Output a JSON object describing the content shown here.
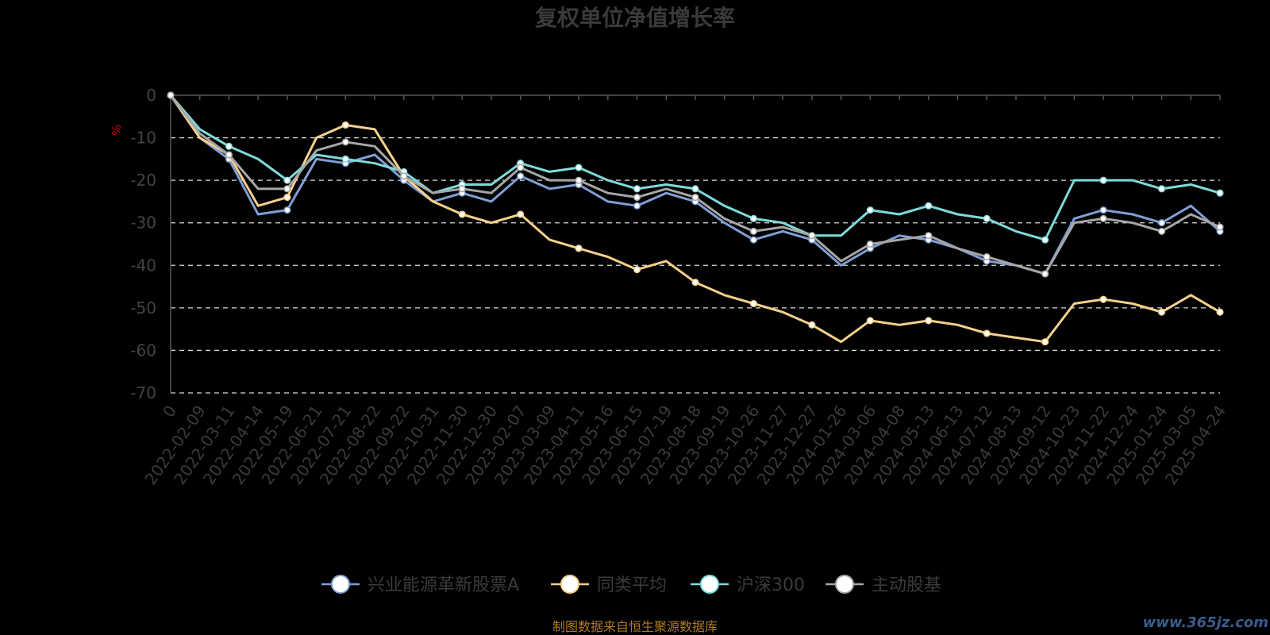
{
  "chart_data": {
    "type": "line",
    "title": "复权单位净值增长率",
    "ylabel": "%",
    "ylim": [
      -70,
      0
    ],
    "yticks": [
      0,
      -10,
      -20,
      -30,
      -40,
      -50,
      -60,
      -70
    ],
    "x_labels": [
      "0",
      "2022-02-09",
      "2022-03-11",
      "2022-04-14",
      "2022-05-19",
      "2022-06-21",
      "2022-07-21",
      "2022-08-22",
      "2022-09-22",
      "2022-10-31",
      "2022-11-30",
      "2022-12-30",
      "2023-02-07",
      "2023-03-09",
      "2023-04-11",
      "2023-05-16",
      "2023-06-15",
      "2023-07-19",
      "2023-08-18",
      "2023-09-19",
      "2023-10-26",
      "2023-11-27",
      "2023-12-27",
      "2024-01-26",
      "2024-03-06",
      "2024-04-08",
      "2024-05-13",
      "2024-06-13",
      "2024-07-12",
      "2024-08-13",
      "2024-09-12",
      "2024-10-23",
      "2024-11-22",
      "2024-12-24",
      "2025-01-24",
      "2025-03-05",
      "2025-04-24"
    ],
    "grid": true,
    "legend_position": "bottom",
    "series": [
      {
        "name": "兴业能源革新股票A",
        "color": "#7f9fd4",
        "values": [
          0,
          -10,
          -15,
          -28,
          -27,
          -15,
          -16,
          -14,
          -20,
          -25,
          -23,
          -25,
          -19,
          -22,
          -21,
          -25,
          -26,
          -23,
          -25,
          -30,
          -34,
          -32,
          -34,
          -40,
          -36,
          -33,
          -34,
          -36,
          -39,
          -40,
          -42,
          -29,
          -27,
          -28,
          -30,
          -26,
          -32
        ]
      },
      {
        "name": "同类平均",
        "color": "#f5d08a",
        "values": [
          0,
          -10,
          -14,
          -26,
          -24,
          -10,
          -7,
          -8,
          -19,
          -25,
          -28,
          -30,
          -28,
          -34,
          -36,
          -38,
          -41,
          -39,
          -44,
          -47,
          -49,
          -51,
          -54,
          -58,
          -53,
          -54,
          -53,
          -54,
          -56,
          -57,
          -58,
          -49,
          -48,
          -49,
          -51,
          -47,
          -51
        ]
      },
      {
        "name": "沪深300",
        "color": "#7fdada",
        "values": [
          0,
          -8,
          -12,
          -15,
          -20,
          -14,
          -15,
          -16,
          -18,
          -23,
          -21,
          -21,
          -16,
          -18,
          -17,
          -20,
          -22,
          -21,
          -22,
          -26,
          -29,
          -30,
          -33,
          -33,
          -27,
          -28,
          -26,
          -28,
          -29,
          -32,
          -34,
          -20,
          -20,
          -20,
          -22,
          -21,
          -23
        ]
      },
      {
        "name": "主动股基",
        "color": "#a6a6a6",
        "values": [
          0,
          -9,
          -14,
          -22,
          -22,
          -13,
          -11,
          -12,
          -19,
          -23,
          -22,
          -23,
          -17,
          -20,
          -20,
          -23,
          -24,
          -22,
          -24,
          -29,
          -32,
          -31,
          -33,
          -39,
          -35,
          -34,
          -33,
          -36,
          -38,
          -40,
          -42,
          -30,
          -29,
          -30,
          -32,
          -28,
          -31
        ]
      }
    ]
  },
  "source_note": "制图数据来自恒生聚源数据库",
  "watermark": "www.365jz.com"
}
